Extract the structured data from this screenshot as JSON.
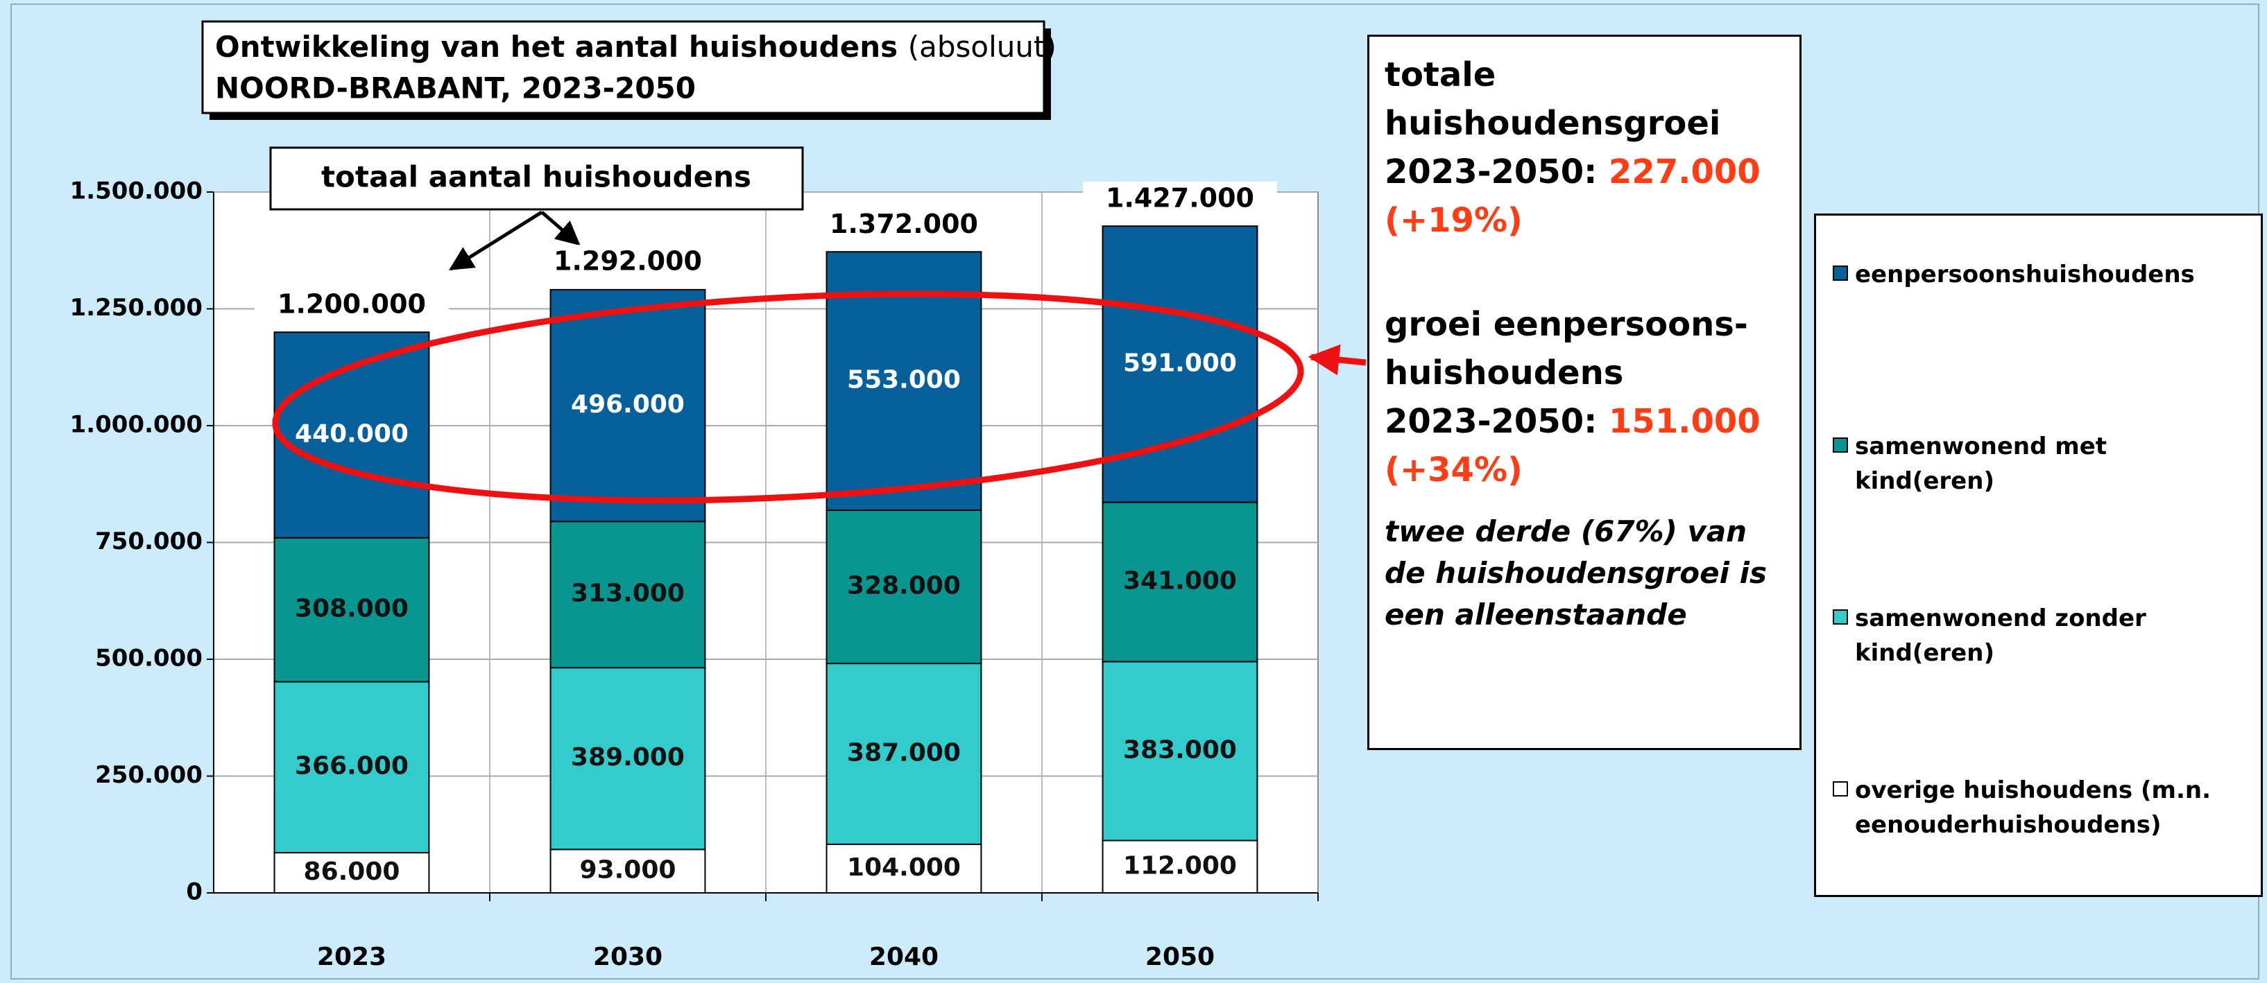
{
  "chart_data": {
    "type": "bar",
    "stacked": true,
    "title": "Ontwikkeling van het aantal huishoudens",
    "title_note": "(absoluut)",
    "subtitle": "NOORD-BRABANT, 2023-2050",
    "categories": [
      "2023",
      "2030",
      "2040",
      "2050"
    ],
    "series": [
      {
        "name": "overige huishoudens (m.n. eenouderhuishoudens)",
        "color": "#ffffff",
        "values": [
          86000,
          93000,
          104000,
          112000
        ],
        "value_labels": [
          "86.000",
          "93.000",
          "104.000",
          "112.000"
        ]
      },
      {
        "name": "samenwonend zonder kind(eren)",
        "color": "#33cccc",
        "values": [
          366000,
          389000,
          387000,
          383000
        ],
        "value_labels": [
          "366.000",
          "389.000",
          "387.000",
          "383.000"
        ]
      },
      {
        "name": "samenwonend met kind(eren)",
        "color": "#0a9690",
        "values": [
          308000,
          313000,
          328000,
          341000
        ],
        "value_labels": [
          "308.000",
          "313.000",
          "328.000",
          "341.000"
        ]
      },
      {
        "name": "eenpersoonshuishoudens",
        "color": "#08609a",
        "values": [
          440000,
          496000,
          553000,
          591000
        ],
        "value_labels": [
          "440.000",
          "496.000",
          "553.000",
          "591.000"
        ]
      }
    ],
    "totals": {
      "label": "totaal aantal huishoudens",
      "values": [
        1200000,
        1292000,
        1372000,
        1427000
      ],
      "value_labels": [
        "1.200.000",
        "1.292.000",
        "1.372.000",
        "1.427.000"
      ]
    },
    "ylim": [
      0,
      1500000
    ],
    "yticks": [
      0,
      {
        "value": 250000,
        "label": "250.000"
      },
      {
        "value": 500000,
        "label": "500.000"
      },
      {
        "value": 750000,
        "label": "750.000"
      },
      {
        "value": 1000000,
        "label": "1.000.000"
      },
      {
        "value": 1250000,
        "label": "1.250.000"
      },
      {
        "value": 1500000,
        "label": "1.500.000"
      }
    ],
    "grid": true,
    "legend": "right",
    "annotations": {
      "total_growth": {
        "lines": [
          "totale",
          "huishoudensgroei"
        ],
        "period": "2023-2050:",
        "value": "227.000",
        "change": "(+19%)"
      },
      "single_growth": {
        "lines": [
          "groei eenpersoons-",
          "huishoudens"
        ],
        "period": "2023-2050:",
        "value": "151.000",
        "change": "(+34%)"
      },
      "note": [
        "twee derde (67%) van",
        "de huishoudensgroei is",
        "een alleenstaande"
      ]
    }
  }
}
